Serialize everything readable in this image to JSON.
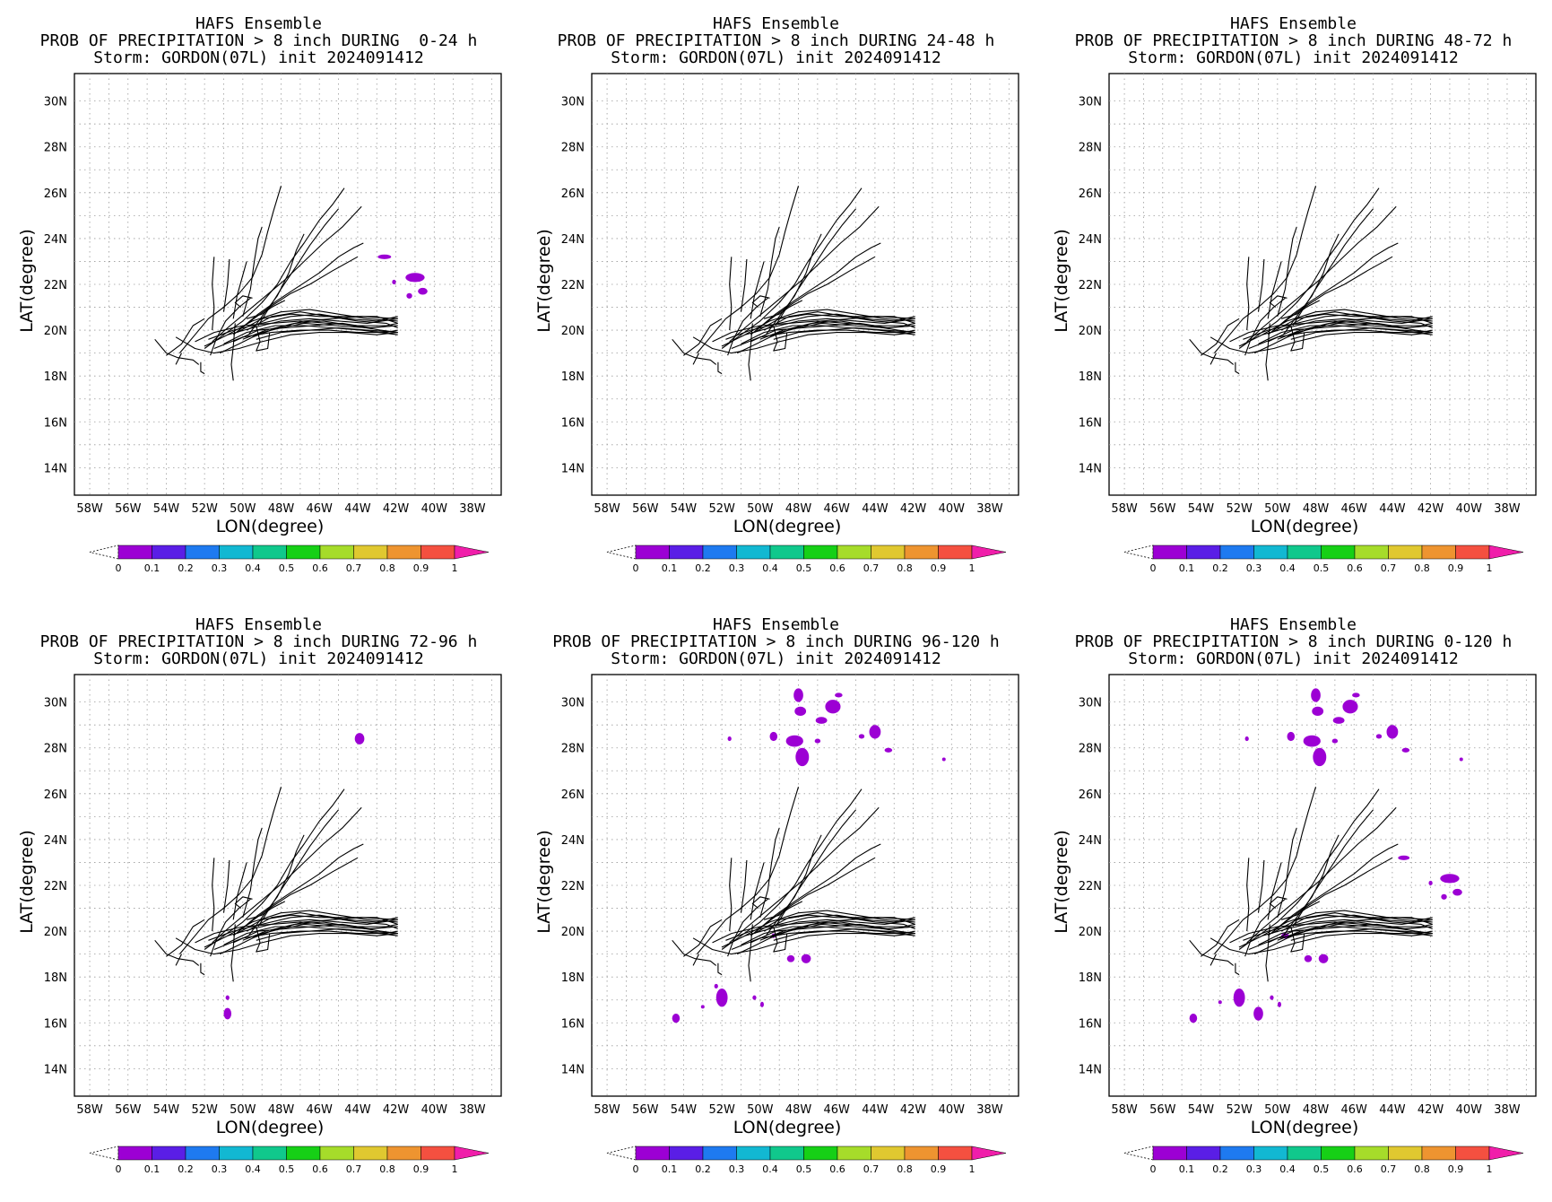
{
  "figure": {
    "xlabel": "LON(degree)",
    "ylabel": "LAT(degree)",
    "x_ticks": [
      "58W",
      "56W",
      "54W",
      "52W",
      "50W",
      "48W",
      "46W",
      "44W",
      "42W",
      "40W",
      "38W"
    ],
    "y_ticks": [
      "14N",
      "16N",
      "18N",
      "20N",
      "22N",
      "24N",
      "26N",
      "28N",
      "30N"
    ],
    "colorbar": {
      "labels": [
        "0",
        "0.1",
        "0.2",
        "0.3",
        "0.4",
        "0.5",
        "0.6",
        "0.7",
        "0.8",
        "0.9",
        "1"
      ],
      "colors": [
        "#9c00d4",
        "#5a1ee6",
        "#1e7af0",
        "#12b8d2",
        "#10c88c",
        "#16d016",
        "#a6dc2a",
        "#e0c830",
        "#ee9430",
        "#f45040"
      ],
      "over_color": "#f01eaa"
    },
    "prob_color": "#9c00d4"
  },
  "panels": [
    {
      "title1": "HAFS Ensemble",
      "title2": "PROB OF PRECIPITATION > 8 inch DURING  0-24 h",
      "title3": "Storm: GORDON(07L) init 2024091412",
      "blobs": [
        [
          -42.6,
          23.2,
          0.35,
          0.1
        ],
        [
          -41.0,
          22.3,
          0.5,
          0.2
        ],
        [
          -40.6,
          21.7,
          0.25,
          0.15
        ],
        [
          -41.3,
          21.5,
          0.15,
          0.12
        ],
        [
          -42.1,
          22.1,
          0.1,
          0.1
        ]
      ]
    },
    {
      "title1": "HAFS Ensemble",
      "title2": "PROB OF PRECIPITATION > 8 inch DURING 24-48 h",
      "title3": "Storm: GORDON(07L) init 2024091412",
      "blobs": []
    },
    {
      "title1": "HAFS Ensemble",
      "title2": "PROB OF PRECIPITATION > 8 inch DURING 48-72 h",
      "title3": "Storm: GORDON(07L) init 2024091412",
      "blobs": []
    },
    {
      "title1": "HAFS Ensemble",
      "title2": "PROB OF PRECIPITATION > 8 inch DURING 72-96 h",
      "title3": "Storm: GORDON(07L) init 2024091412",
      "blobs": [
        [
          -43.9,
          28.4,
          0.25,
          0.25
        ],
        [
          -50.8,
          16.4,
          0.2,
          0.25
        ],
        [
          -50.8,
          17.1,
          0.1,
          0.1
        ]
      ]
    },
    {
      "title1": "HAFS Ensemble",
      "title2": "PROB OF PRECIPITATION > 8 inch DURING 96-120 h",
      "title3": "Storm: GORDON(07L) init 2024091412",
      "blobs": [
        [
          -48.0,
          30.3,
          0.25,
          0.3
        ],
        [
          -47.9,
          29.6,
          0.3,
          0.2
        ],
        [
          -46.2,
          29.8,
          0.4,
          0.3
        ],
        [
          -45.9,
          30.3,
          0.2,
          0.1
        ],
        [
          -46.8,
          29.2,
          0.3,
          0.15
        ],
        [
          -48.2,
          28.3,
          0.45,
          0.25
        ],
        [
          -47.8,
          27.6,
          0.35,
          0.4
        ],
        [
          -49.3,
          28.5,
          0.2,
          0.2
        ],
        [
          -47.0,
          28.3,
          0.15,
          0.1
        ],
        [
          -44.0,
          28.7,
          0.3,
          0.3
        ],
        [
          -44.7,
          28.5,
          0.15,
          0.1
        ],
        [
          -43.3,
          27.9,
          0.2,
          0.1
        ],
        [
          -51.6,
          28.4,
          0.1,
          0.1
        ],
        [
          -40.4,
          27.5,
          0.08,
          0.08
        ],
        [
          -48.4,
          18.8,
          0.2,
          0.15
        ],
        [
          -47.6,
          18.8,
          0.25,
          0.2
        ],
        [
          -52.0,
          17.1,
          0.3,
          0.4
        ],
        [
          -52.3,
          17.6,
          0.1,
          0.1
        ],
        [
          -50.3,
          17.1,
          0.1,
          0.1
        ],
        [
          -49.9,
          16.8,
          0.08,
          0.12
        ],
        [
          -54.4,
          16.2,
          0.2,
          0.2
        ],
        [
          -53.0,
          16.7,
          0.08,
          0.08
        ],
        [
          -49.3,
          19.8,
          0.1,
          0.1
        ]
      ]
    },
    {
      "title1": "HAFS Ensemble",
      "title2": "PROB OF PRECIPITATION > 8 inch DURING 0-120 h",
      "title3": "Storm: GORDON(07L) init 2024091412",
      "blobs": [
        [
          -48.0,
          30.3,
          0.25,
          0.3
        ],
        [
          -47.9,
          29.6,
          0.3,
          0.2
        ],
        [
          -46.2,
          29.8,
          0.4,
          0.3
        ],
        [
          -45.9,
          30.3,
          0.2,
          0.1
        ],
        [
          -46.8,
          29.2,
          0.3,
          0.15
        ],
        [
          -48.2,
          28.3,
          0.45,
          0.25
        ],
        [
          -47.8,
          27.6,
          0.35,
          0.4
        ],
        [
          -49.3,
          28.5,
          0.2,
          0.2
        ],
        [
          -47.0,
          28.3,
          0.15,
          0.1
        ],
        [
          -44.0,
          28.7,
          0.3,
          0.3
        ],
        [
          -44.7,
          28.5,
          0.15,
          0.1
        ],
        [
          -43.3,
          27.9,
          0.2,
          0.1
        ],
        [
          -51.6,
          28.4,
          0.1,
          0.1
        ],
        [
          -40.4,
          27.5,
          0.08,
          0.08
        ],
        [
          -48.4,
          18.8,
          0.2,
          0.15
        ],
        [
          -47.6,
          18.8,
          0.25,
          0.2
        ],
        [
          -52.0,
          17.1,
          0.3,
          0.4
        ],
        [
          -51.0,
          16.4,
          0.25,
          0.3
        ],
        [
          -50.3,
          17.1,
          0.1,
          0.1
        ],
        [
          -49.9,
          16.8,
          0.08,
          0.12
        ],
        [
          -54.4,
          16.2,
          0.2,
          0.2
        ],
        [
          -53.0,
          16.9,
          0.08,
          0.08
        ],
        [
          -49.6,
          19.8,
          0.2,
          0.12
        ],
        [
          -43.4,
          23.2,
          0.3,
          0.1
        ],
        [
          -41.0,
          22.3,
          0.5,
          0.2
        ],
        [
          -40.6,
          21.7,
          0.25,
          0.15
        ],
        [
          -41.3,
          21.5,
          0.15,
          0.12
        ],
        [
          -42.0,
          22.1,
          0.1,
          0.1
        ]
      ]
    }
  ],
  "tracks": [
    [
      [
        -52.5,
        19.5
      ],
      [
        -51.5,
        19.9
      ],
      [
        -50.0,
        20.2
      ],
      [
        -48.5,
        20.3
      ],
      [
        -47.0,
        20.4
      ],
      [
        -45.5,
        20.3
      ],
      [
        -44.0,
        20.2
      ],
      [
        -42.5,
        20.2
      ],
      [
        -41.9,
        20.3
      ]
    ],
    [
      [
        -52.0,
        19.3
      ],
      [
        -50.8,
        19.8
      ],
      [
        -49.5,
        20.1
      ],
      [
        -48.0,
        20.4
      ],
      [
        -46.5,
        20.5
      ],
      [
        -45.0,
        20.4
      ],
      [
        -43.5,
        20.3
      ],
      [
        -41.9,
        20.5
      ]
    ],
    [
      [
        -51.8,
        19.6
      ],
      [
        -50.5,
        20.0
      ],
      [
        -49.0,
        20.3
      ],
      [
        -47.5,
        20.6
      ],
      [
        -46.0,
        20.7
      ],
      [
        -44.5,
        20.5
      ],
      [
        -43.0,
        20.4
      ],
      [
        -41.9,
        20.6
      ]
    ],
    [
      [
        -51.5,
        19.2
      ],
      [
        -50.0,
        19.7
      ],
      [
        -48.5,
        19.9
      ],
      [
        -47.0,
        20.0
      ],
      [
        -45.5,
        20.0
      ],
      [
        -44.0,
        19.9
      ],
      [
        -42.5,
        19.9
      ],
      [
        -41.9,
        20.0
      ]
    ],
    [
      [
        -51.0,
        19.4
      ],
      [
        -49.8,
        19.9
      ],
      [
        -48.3,
        20.2
      ],
      [
        -46.8,
        20.2
      ],
      [
        -45.3,
        20.1
      ],
      [
        -43.8,
        20.0
      ],
      [
        -41.9,
        19.8
      ]
    ],
    [
      [
        -50.8,
        19.8
      ],
      [
        -49.5,
        20.4
      ],
      [
        -48.0,
        20.8
      ],
      [
        -46.5,
        20.9
      ],
      [
        -45.0,
        20.7
      ],
      [
        -43.5,
        20.5
      ],
      [
        -41.9,
        20.4
      ]
    ],
    [
      [
        -50.5,
        19.5
      ],
      [
        -49.2,
        20.0
      ],
      [
        -47.8,
        20.1
      ],
      [
        -46.3,
        20.2
      ],
      [
        -44.8,
        20.3
      ],
      [
        -43.3,
        20.1
      ],
      [
        -41.9,
        20.2
      ]
    ],
    [
      [
        -50.3,
        19.9
      ],
      [
        -49.0,
        20.5
      ],
      [
        -47.5,
        20.7
      ],
      [
        -46.0,
        20.6
      ],
      [
        -44.5,
        20.6
      ],
      [
        -43.0,
        20.6
      ],
      [
        -41.9,
        20.3
      ]
    ],
    [
      [
        -50.0,
        19.6
      ],
      [
        -48.8,
        20.0
      ],
      [
        -47.3,
        20.3
      ],
      [
        -45.8,
        20.4
      ],
      [
        -44.3,
        20.2
      ],
      [
        -42.8,
        20.0
      ],
      [
        -41.9,
        19.9
      ]
    ],
    [
      [
        -49.8,
        20.0
      ],
      [
        -48.5,
        20.6
      ],
      [
        -47.0,
        20.8
      ],
      [
        -45.5,
        20.6
      ],
      [
        -44.0,
        20.4
      ],
      [
        -42.5,
        20.3
      ],
      [
        -41.9,
        20.1
      ]
    ],
    [
      [
        -49.5,
        19.7
      ],
      [
        -48.2,
        20.1
      ],
      [
        -46.8,
        20.4
      ],
      [
        -45.3,
        20.5
      ],
      [
        -43.8,
        20.6
      ],
      [
        -41.9,
        20.5
      ]
    ],
    [
      [
        -49.3,
        19.6
      ],
      [
        -48.0,
        19.9
      ],
      [
        -46.5,
        20.0
      ],
      [
        -45.0,
        20.1
      ],
      [
        -43.5,
        20.0
      ],
      [
        -41.9,
        19.9
      ]
    ],
    [
      [
        -53.5,
        19.7
      ],
      [
        -52.5,
        19.2
      ],
      [
        -51.5,
        19.0
      ],
      [
        -50.2,
        19.2
      ],
      [
        -49.0,
        19.5
      ],
      [
        -47.5,
        19.8
      ],
      [
        -46.0,
        19.9
      ],
      [
        -44.5,
        19.9
      ],
      [
        -43.0,
        19.8
      ],
      [
        -41.9,
        19.9
      ]
    ],
    [
      [
        -51.2,
        19.0
      ],
      [
        -50.2,
        19.4
      ],
      [
        -49.0,
        19.9
      ],
      [
        -48.0,
        20.1
      ],
      [
        -46.8,
        20.3
      ],
      [
        -45.2,
        20.2
      ],
      [
        -43.5,
        20.1
      ],
      [
        -41.9,
        20.2
      ]
    ],
    [
      [
        -54.6,
        19.6
      ],
      [
        -54.0,
        19.0
      ],
      [
        -53.4,
        18.8
      ],
      [
        -52.6,
        18.7
      ],
      [
        -52.3,
        18.5
      ]
    ],
    [
      [
        -54.0,
        18.9
      ],
      [
        -53.2,
        19.4
      ],
      [
        -52.6,
        20.2
      ],
      [
        -52.0,
        20.5
      ]
    ],
    [
      [
        -53.2,
        19.0
      ],
      [
        -53.5,
        18.5
      ]
    ],
    [
      [
        -52.2,
        18.6
      ],
      [
        -52.2,
        18.2
      ],
      [
        -52.0,
        18.1
      ]
    ],
    [
      [
        -51.7,
        18.9
      ],
      [
        -51.4,
        19.6
      ],
      [
        -50.9,
        20.4
      ],
      [
        -50.2,
        21.0
      ],
      [
        -49.6,
        21.4
      ]
    ],
    [
      [
        -53.3,
        19.0
      ],
      [
        -52.5,
        19.8
      ],
      [
        -51.8,
        20.5
      ],
      [
        -51.0,
        21.0
      ],
      [
        -50.2,
        21.6
      ],
      [
        -49.5,
        22.3
      ],
      [
        -49.0,
        23.3
      ],
      [
        -48.7,
        24.3
      ],
      [
        -48.4,
        25.2
      ],
      [
        -48.0,
        26.3
      ]
    ],
    [
      [
        -52.0,
        19.2
      ],
      [
        -51.0,
        19.8
      ],
      [
        -50.0,
        20.4
      ],
      [
        -49.0,
        21.2
      ],
      [
        -48.2,
        22.0
      ],
      [
        -47.5,
        23.0
      ],
      [
        -46.8,
        23.8
      ],
      [
        -46.0,
        24.8
      ],
      [
        -45.3,
        25.5
      ],
      [
        -44.7,
        26.2
      ]
    ],
    [
      [
        -51.6,
        19.5
      ],
      [
        -50.8,
        20.1
      ],
      [
        -49.8,
        20.8
      ],
      [
        -48.8,
        21.5
      ],
      [
        -47.8,
        22.2
      ],
      [
        -46.8,
        23.0
      ],
      [
        -45.8,
        23.8
      ],
      [
        -44.8,
        24.5
      ],
      [
        -43.8,
        25.4
      ]
    ],
    [
      [
        -50.5,
        19.8
      ],
      [
        -49.6,
        20.4
      ],
      [
        -48.6,
        21.0
      ],
      [
        -47.5,
        21.6
      ],
      [
        -46.5,
        22.0
      ],
      [
        -45.3,
        22.6
      ],
      [
        -44.0,
        23.2
      ]
    ],
    [
      [
        -50.2,
        20.0
      ],
      [
        -49.2,
        20.7
      ],
      [
        -48.2,
        21.3
      ],
      [
        -47.1,
        21.9
      ],
      [
        -46.0,
        22.5
      ],
      [
        -45.0,
        23.2
      ],
      [
        -44.2,
        23.6
      ],
      [
        -43.7,
        23.8
      ]
    ],
    [
      [
        -49.7,
        19.8
      ],
      [
        -49.0,
        20.6
      ],
      [
        -48.2,
        21.5
      ],
      [
        -47.6,
        22.5
      ],
      [
        -47.2,
        23.5
      ],
      [
        -46.8,
        24.2
      ]
    ],
    [
      [
        -49.2,
        20.2
      ],
      [
        -48.6,
        21.0
      ],
      [
        -48.0,
        21.8
      ],
      [
        -47.2,
        22.8
      ],
      [
        -46.5,
        23.7
      ],
      [
        -45.7,
        24.6
      ],
      [
        -45.0,
        25.3
      ]
    ],
    [
      [
        -50.0,
        20.6
      ],
      [
        -49.6,
        21.8
      ],
      [
        -49.4,
        23.0
      ],
      [
        -49.2,
        24.0
      ],
      [
        -49.0,
        24.5
      ]
    ],
    [
      [
        -50.5,
        20.5
      ],
      [
        -50.3,
        21.5
      ],
      [
        -50.0,
        22.4
      ],
      [
        -49.8,
        23.0
      ]
    ],
    [
      [
        -51.0,
        20.8
      ],
      [
        -50.8,
        22.0
      ],
      [
        -50.7,
        23.1
      ]
    ],
    [
      [
        -51.6,
        20.0
      ],
      [
        -51.5,
        21.0
      ],
      [
        -51.6,
        22.0
      ],
      [
        -51.5,
        23.2
      ]
    ],
    [
      [
        -50.1,
        21.0
      ],
      [
        -50.4,
        21.2
      ],
      [
        -50.0,
        21.5
      ],
      [
        -49.5,
        21.4
      ]
    ],
    [
      [
        -49.3,
        20.2
      ],
      [
        -49.1,
        19.5
      ],
      [
        -49.3,
        19.1
      ],
      [
        -48.7,
        19.2
      ],
      [
        -48.6,
        19.9
      ]
    ],
    [
      [
        -50.4,
        20.3
      ],
      [
        -50.5,
        19.3
      ],
      [
        -50.6,
        18.5
      ],
      [
        -50.5,
        17.8
      ]
    ],
    [
      [
        -49.8,
        20.5
      ],
      [
        -49.0,
        20.7
      ],
      [
        -48.5,
        21.0
      ],
      [
        -47.8,
        21.3
      ]
    ]
  ]
}
